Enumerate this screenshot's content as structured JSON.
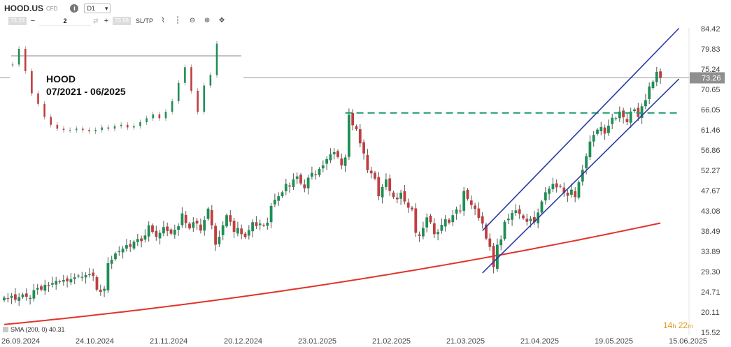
{
  "toolbar": {
    "symbol": "HOOD.US",
    "instrument_type": "CFD",
    "info_icon": "info-icon",
    "timeframe": "D1",
    "bid_price": "73.26",
    "ask_price": "73.58",
    "volume": "2",
    "minus_label": "−",
    "plus_label": "+",
    "sltp_label": "SL/TP",
    "tools": [
      "line-chart-icon",
      "candles-icon",
      "zoom-out-icon",
      "zoom-in-icon",
      "move-icon"
    ]
  },
  "annotation": {
    "line1": "HOOD",
    "line2": "07/2021 - 06/2025"
  },
  "sma_legend": "SMA (200, 0) 40.31",
  "timer": {
    "hours": "14",
    "h_unit": "h",
    "minutes": "22",
    "m_unit": "m"
  },
  "colors": {
    "bull": "#1e8f55",
    "bear": "#c03e3e",
    "sma": "#e2332a",
    "channel": "#2b3aa6",
    "resistance": "#1a9a6b",
    "current_price_bg": "#8f8f8f"
  },
  "chart_data": {
    "type": "candlestick",
    "title": "",
    "xlabel": "",
    "ylabel": "",
    "ylim": [
      15.52,
      88.0
    ],
    "yticks": [
      "84.42",
      "79.83",
      "75.24",
      "70.65",
      "66.05",
      "61.46",
      "56.86",
      "52.27",
      "47.67",
      "43.08",
      "38.49",
      "33.89",
      "29.30",
      "24.71",
      "20.11",
      "15.52"
    ],
    "x_ticks": [
      {
        "label": "26.09.2024",
        "index": 0
      },
      {
        "label": "24.10.2024",
        "index": 20
      },
      {
        "label": "21.11.2024",
        "index": 40
      },
      {
        "label": "20.12.2024",
        "index": 60
      },
      {
        "label": "23.01.2025",
        "index": 80
      },
      {
        "label": "21.02.2025",
        "index": 100
      },
      {
        "label": "21.03.2025",
        "index": 120
      },
      {
        "label": "21.04.2025",
        "index": 140
      },
      {
        "label": "19.05.2025",
        "index": 160
      },
      {
        "label": "15.06.2025",
        "index": 180
      }
    ],
    "current_price": 73.26,
    "candle_closes": [
      23.4,
      23.2,
      23.8,
      22.9,
      23.5,
      24.1,
      23.6,
      23.3,
      25.1,
      25.6,
      25.2,
      26.3,
      26.1,
      26.7,
      27.2,
      26.9,
      27.4,
      27.1,
      27.6,
      28.0,
      28.4,
      28.1,
      28.5,
      28.7,
      28.3,
      25.2,
      24.7,
      25.4,
      31.2,
      32.0,
      33.4,
      33.9,
      34.5,
      35.3,
      34.9,
      36.1,
      36.7,
      36.2,
      37.5,
      39.8,
      38.3,
      37.2,
      38.1,
      39.4,
      38.5,
      37.9,
      38.8,
      39.6,
      42.5,
      40.3,
      39.1,
      40.5,
      40.2,
      38.6,
      41.0,
      43.6,
      39.8,
      35.4,
      37.2,
      39.8,
      42.1,
      40.6,
      38.3,
      39.2,
      37.8,
      37.1,
      38.7,
      40.5,
      39.6,
      40.2,
      39.8,
      40.4,
      44.2,
      45.6,
      46.4,
      47.3,
      49.2,
      48.6,
      50.2,
      50.9,
      49.3,
      48.2,
      50.6,
      51.7,
      51.3,
      52.6,
      53.4,
      54.8,
      55.9,
      56.4,
      55.3,
      53.4,
      55.2,
      64.9,
      62.5,
      61.6,
      58.4,
      56.1,
      52.3,
      51.6,
      50.4,
      46.4,
      48.5,
      50.2,
      47.6,
      46.2,
      45.7,
      47.2,
      45.2,
      43.8,
      43.4,
      38.1,
      37.4,
      39.2,
      41.6,
      40.5,
      37.8,
      38.3,
      39.9,
      41.2,
      40.4,
      42.1,
      43.4,
      43.1,
      47.6,
      45.8,
      44.4,
      43.5,
      41.5,
      40.2,
      36.8,
      34.9,
      30.3,
      35.4,
      36.6,
      40.6,
      41.3,
      42.6,
      43.2,
      42.4,
      41.4,
      40.6,
      41.3,
      40.5,
      42.7,
      45.2,
      47.3,
      48.1,
      49.2,
      48.4,
      48.6,
      47.2,
      46.5,
      47.9,
      46.2,
      49.6,
      52.4,
      55.5,
      58.8,
      60.3,
      61.5,
      62.1,
      60.6,
      62.4,
      64.2,
      64.1,
      65.6,
      64.3,
      63.2,
      65.6,
      66.1,
      64.4,
      66.8,
      68.2,
      71.3,
      72.4,
      74.6,
      73.26
    ],
    "sma": {
      "name": "SMA (200, 0)",
      "start": 17.3,
      "end": 40.31
    },
    "resistance_level": 65.3,
    "channel": {
      "lower_start": 29.0,
      "lower_end": 73.0,
      "upper_start": 38.6,
      "upper_end": 84.5
    },
    "inset": {
      "title": "HOOD 07/2021 - 06/2025",
      "series": [
        60,
        72,
        55,
        38,
        30,
        20,
        14,
        11,
        10,
        10,
        11,
        10,
        9,
        10,
        12,
        11,
        13,
        14,
        12,
        13,
        16,
        19,
        22,
        19,
        24,
        32,
        46,
        58,
        40,
        24,
        44,
        52,
        76
      ]
    }
  }
}
